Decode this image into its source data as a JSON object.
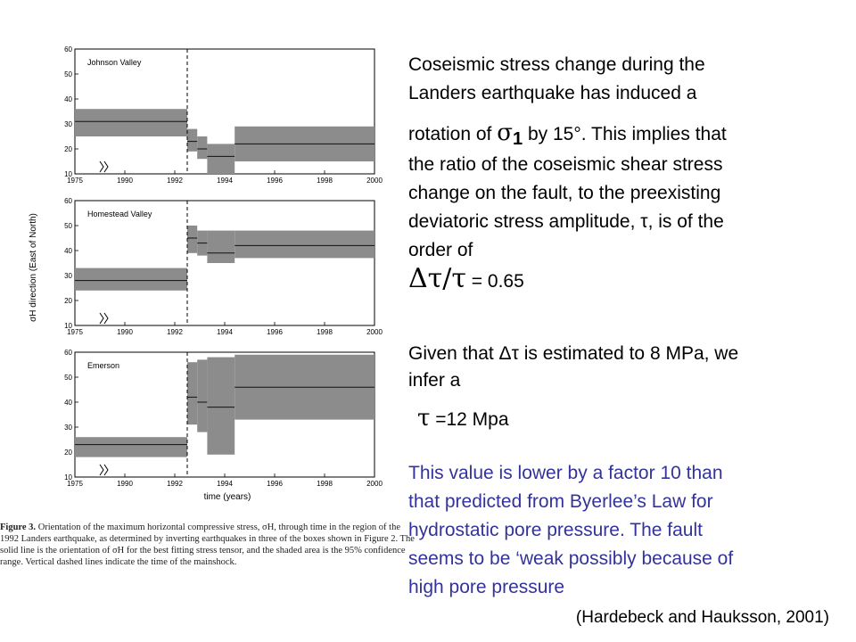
{
  "figure": {
    "ylabel": "σH direction (East of North)",
    "xlabel": "time (years)",
    "panels": [
      {
        "name": "Johnson Valley"
      },
      {
        "name": "Homestead Valley"
      },
      {
        "name": "Emerson"
      }
    ]
  },
  "caption": {
    "label": "Figure 3.",
    "text": "Orientation of the maximum horizontal compressive stress, σH, through time in the region of the 1992 Landers earthquake, as determined by inverting earthquakes in three of the boxes shown in Figure 2. The solid line is the orientation of σH for the best fitting stress tensor, and the shaded area is the 95% confidence range. Vertical dashed lines indicate the time of the mainshock."
  },
  "text": {
    "para1_a": "Coseismic stress change during the",
    "para1_b": "Landers earthquake has induced a",
    "para1_c1": "rotation of ",
    "para1_c_sigma": "σ",
    "para1_c_sub": "1",
    "para1_c2": " by 15°. This implies that",
    "para1_d": "the ratio of the coseismic shear stress",
    "para1_e": "change on the fault, to the preexisting",
    "para1_f": "deviatoric stress amplitude, τ, is of the",
    "para1_g": "order of",
    "ratio_lhs": "Δτ/τ",
    "ratio_rhs": " = 0.65",
    "para2_a": "Given that Δτ is estimated to 8 MPa, we",
    "para2_b": "infer a",
    "tau_lhs": "τ",
    "tau_rhs": " =12 Mpa",
    "para3_a": "This value is lower by a factor 10 than",
    "para3_b": "that predicted from Byerlee’s Law  for",
    "para3_c": "hydrostatic pore pressure. The fault",
    "para3_d": "seems to be ‘weak possibly because of",
    "para3_e": "high pore pressure",
    "reference": "(Hardebeck and Hauksson, 2001)"
  },
  "chart_data": [
    {
      "type": "area",
      "title": "Johnson Valley",
      "xlabel": "",
      "ylabel": "",
      "xlim": [
        1975,
        2000
      ],
      "ylim": [
        10,
        60
      ],
      "xticks": [
        "1975",
        "1990",
        "1992",
        "1994",
        "1996",
        "1998",
        "2000"
      ],
      "yticks": [
        10,
        20,
        30,
        40,
        50,
        60
      ],
      "mainshock": 1992.5,
      "segments": [
        {
          "x0": 1975,
          "x1": 1992.5,
          "best": 31,
          "low": 25,
          "high": 36
        },
        {
          "x0": 1992.5,
          "x1": 1992.9,
          "best": 23,
          "low": 19,
          "high": 28
        },
        {
          "x0": 1992.9,
          "x1": 1993.3,
          "best": 20,
          "low": 16,
          "high": 25
        },
        {
          "x0": 1993.3,
          "x1": 1994.4,
          "best": 17,
          "low": 10,
          "high": 22
        },
        {
          "x0": 1994.4,
          "x1": 2000,
          "best": 22,
          "low": 15,
          "high": 29
        }
      ]
    },
    {
      "type": "area",
      "title": "Homestead Valley",
      "xlabel": "",
      "ylabel": "",
      "xlim": [
        1975,
        2000
      ],
      "ylim": [
        10,
        60
      ],
      "xticks": [
        "1975",
        "1990",
        "1992",
        "1994",
        "1996",
        "1998",
        "2000"
      ],
      "yticks": [
        10,
        20,
        30,
        40,
        50,
        60
      ],
      "mainshock": 1992.5,
      "segments": [
        {
          "x0": 1975,
          "x1": 1992.5,
          "best": 28,
          "low": 24,
          "high": 33
        },
        {
          "x0": 1992.5,
          "x1": 1992.9,
          "best": 45,
          "low": 39,
          "high": 50
        },
        {
          "x0": 1992.9,
          "x1": 1993.3,
          "best": 43,
          "low": 38,
          "high": 48
        },
        {
          "x0": 1993.3,
          "x1": 1994.4,
          "best": 39,
          "low": 35,
          "high": 48
        },
        {
          "x0": 1994.4,
          "x1": 2000,
          "best": 42,
          "low": 37,
          "high": 48
        }
      ]
    },
    {
      "type": "area",
      "title": "Emerson",
      "xlabel": "time (years)",
      "ylabel": "",
      "xlim": [
        1975,
        2000
      ],
      "ylim": [
        10,
        60
      ],
      "xticks": [
        "1975",
        "1990",
        "1992",
        "1994",
        "1996",
        "1998",
        "2000"
      ],
      "yticks": [
        10,
        20,
        30,
        40,
        50,
        60
      ],
      "mainshock": 1992.5,
      "segments": [
        {
          "x0": 1975,
          "x1": 1992.5,
          "best": 23,
          "low": 18,
          "high": 26
        },
        {
          "x0": 1992.5,
          "x1": 1992.9,
          "best": 42,
          "low": 31,
          "high": 56
        },
        {
          "x0": 1992.9,
          "x1": 1993.3,
          "best": 40,
          "low": 28,
          "high": 57
        },
        {
          "x0": 1993.3,
          "x1": 1994.4,
          "best": 38,
          "low": 19,
          "high": 58
        },
        {
          "x0": 1994.4,
          "x1": 2000,
          "best": 46,
          "low": 33,
          "high": 59
        }
      ]
    }
  ],
  "colors": {
    "band": "#8c8c8c",
    "line": "#111111",
    "blue_text": "#333399"
  }
}
